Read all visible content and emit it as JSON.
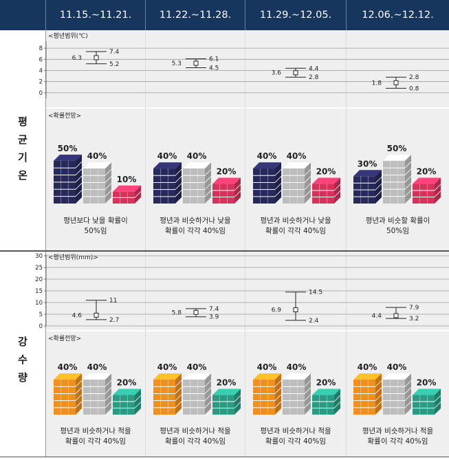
{
  "periods": [
    "11.15.~11.21.",
    "11.22.~11.28.",
    "11.29.~12.05.",
    "12.06.~12.12."
  ],
  "temperature": {
    "section_label": [
      "평",
      "균",
      "기",
      "온"
    ],
    "range_title": "<평년범위(℃)",
    "prob_title": "<확률전망>",
    "chart_data": {
      "type": "errorbar",
      "categories": [
        "11.15.~11.21.",
        "11.22.~11.28.",
        "11.29.~12.05.",
        "12.06.~12.12."
      ],
      "ylim": [
        -1,
        9
      ],
      "yticks": [
        0,
        2,
        4,
        6,
        8
      ],
      "mid": [
        6.3,
        5.3,
        3.6,
        1.8
      ],
      "high": [
        7.4,
        6.1,
        4.4,
        2.8
      ],
      "low": [
        5.2,
        4.5,
        2.8,
        0.8
      ]
    },
    "probabilities": [
      {
        "below": "50%",
        "normal": "40%",
        "above": "10%",
        "levels": [
          0.5,
          0.4,
          0.1
        ],
        "caption": "평년보다 낮을 확률이\n50%임"
      },
      {
        "below": "40%",
        "normal": "40%",
        "above": "20%",
        "levels": [
          0.4,
          0.4,
          0.2
        ],
        "caption": "평년과 비슷하거나 낮을\n확률이 각각 40%임"
      },
      {
        "below": "40%",
        "normal": "40%",
        "above": "20%",
        "levels": [
          0.4,
          0.4,
          0.2
        ],
        "caption": "평년과 비슷하거나 낮을\n확률이 각각 40%임"
      },
      {
        "below": "30%",
        "normal": "50%",
        "above": "20%",
        "levels": [
          0.3,
          0.5,
          0.2
        ],
        "caption": "평년과 비슷할 확률이\n50%임"
      }
    ],
    "colors": {
      "below": "#27295a",
      "normal": "#bdbdbd",
      "above": "#d6325c"
    }
  },
  "precipitation": {
    "section_label": [
      "강",
      "수",
      "량"
    ],
    "range_title": "<평년범위(mm)>",
    "prob_title": "<확률전망>",
    "chart_data": {
      "type": "errorbar",
      "categories": [
        "11.15.~11.21.",
        "11.22.~11.28.",
        "11.29.~12.05.",
        "12.06.~12.12."
      ],
      "ylim": [
        0,
        30
      ],
      "yticks": [
        0,
        5,
        10,
        15,
        20,
        25,
        30
      ],
      "mid": [
        4.6,
        5.8,
        6.9,
        4.4
      ],
      "high": [
        11.0,
        7.4,
        14.5,
        7.9
      ],
      "low": [
        2.7,
        3.9,
        2.4,
        3.2
      ]
    },
    "probabilities": [
      {
        "below": "40%",
        "normal": "40%",
        "above": "20%",
        "levels": [
          0.4,
          0.4,
          0.2
        ],
        "caption": "평년과 비슷하거나 적을\n확률이 각각 40%임"
      },
      {
        "below": "40%",
        "normal": "40%",
        "above": "20%",
        "levels": [
          0.4,
          0.4,
          0.2
        ],
        "caption": "평년과 비슷하거나 적을\n확률이 각각 40%임"
      },
      {
        "below": "40%",
        "normal": "40%",
        "above": "20%",
        "levels": [
          0.4,
          0.4,
          0.2
        ],
        "caption": "평년과 비슷하거나 적을\n확률이 각각 40%임"
      },
      {
        "below": "40%",
        "normal": "40%",
        "above": "20%",
        "levels": [
          0.4,
          0.4,
          0.2
        ],
        "caption": "평년과 비슷하거나 적을\n확률이 각각 40%임"
      }
    ],
    "colors": {
      "below": "#ef8f1d",
      "normal": "#bdbdbd",
      "above": "#2a9a83"
    }
  }
}
